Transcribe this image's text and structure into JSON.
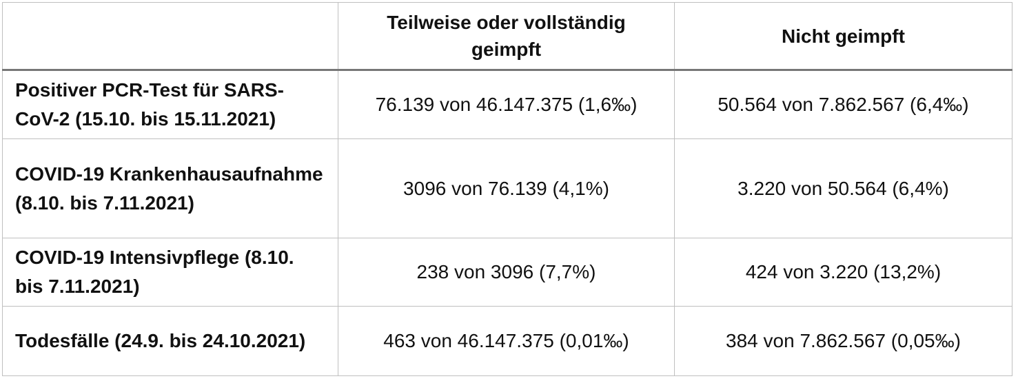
{
  "table": {
    "header": {
      "empty": "",
      "col_vaccinated": "Teilweise oder vollständig geimpft",
      "col_unvaccinated": "Nicht geimpft"
    },
    "rows": [
      {
        "label": "Positiver PCR-Test für SARS-CoV-2 (15.10. bis 15.11.2021)",
        "vaccinated": "76.139 von 46.147.375 (1,6‰)",
        "unvaccinated": "50.564 von 7.862.567 (6,4‰)"
      },
      {
        "label": "COVID-19 Krankenhausaufnahme (8.10. bis 7.11.2021)",
        "vaccinated": "3096 von 76.139 (4,1%)",
        "unvaccinated": "3.220 von 50.564 (6,4%)"
      },
      {
        "label": "COVID-19 Intensivpflege (8.10. bis 7.11.2021)",
        "vaccinated": "238 von 3096 (7,7%)",
        "unvaccinated": "424 von 3.220 (13,2%)"
      },
      {
        "label": "Todesfälle (24.9. bis 24.10.2021)",
        "vaccinated": "463 von 46.147.375 (0,01‰)",
        "unvaccinated": "384 von 7.862.567 (0,05‰)"
      }
    ]
  },
  "colors": {
    "grid_line": "#bfbfbf",
    "header_rule": "#777777",
    "text": "#111111",
    "background": "#ffffff"
  }
}
